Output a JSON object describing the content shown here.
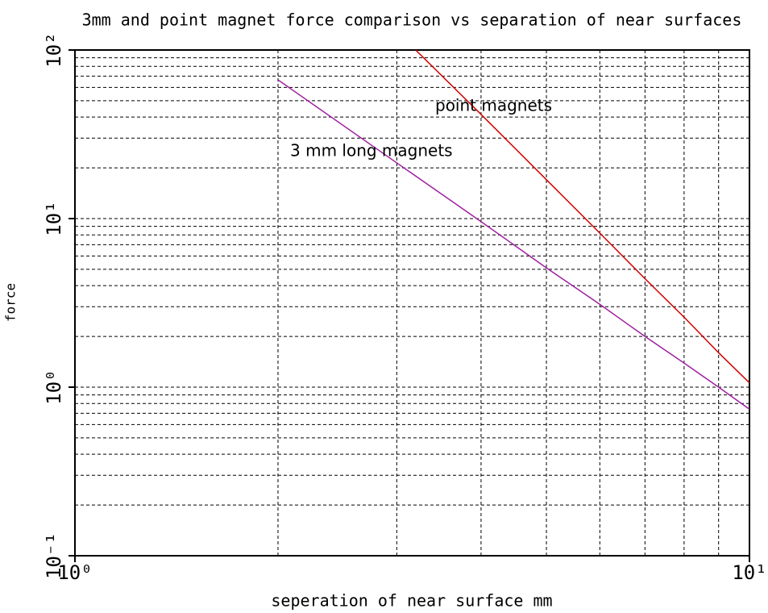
{
  "chart_data": {
    "type": "line",
    "title": "3mm and point magnet force comparison vs separation of near surfaces",
    "x_label": "seperation of near surface mm",
    "y_label": "force",
    "xscale": "log",
    "yscale": "log",
    "xlim": [
      1,
      10
    ],
    "ylim": [
      0.1,
      100
    ],
    "xticks": [
      {
        "value": 1,
        "label": "10⁰"
      },
      {
        "value": 10,
        "label": "10¹"
      }
    ],
    "yticks": [
      {
        "value": 0.1,
        "label": "10⁻¹"
      },
      {
        "value": 1,
        "label": "10⁰"
      },
      {
        "value": 10,
        "label": "10¹"
      },
      {
        "value": 100,
        "label": "10²"
      }
    ],
    "xminor": [
      2,
      3,
      4,
      5,
      6,
      7,
      8,
      9
    ],
    "yminor": [
      0.2,
      0.3,
      0.4,
      0.5,
      0.6,
      0.7,
      0.8,
      0.9,
      2,
      3,
      4,
      5,
      6,
      7,
      8,
      9,
      20,
      30,
      40,
      50,
      60,
      70,
      80,
      90
    ],
    "grid": true,
    "series": [
      {
        "name": "3 mm long magnets",
        "color": "#a020a0",
        "x": [
          2,
          3,
          4,
          5,
          6,
          7,
          8,
          9,
          10
        ],
        "values": [
          66.5,
          21.4,
          9.6,
          5.1,
          3.1,
          2.0,
          1.39,
          1.0,
          0.74
        ]
      },
      {
        "name": "point magnets",
        "color": "#d00000",
        "x": [
          3.2,
          4,
          5,
          6,
          7,
          8,
          9,
          10
        ],
        "values": [
          100,
          41.5,
          17,
          8.2,
          4.4,
          2.6,
          1.6,
          1.06
        ]
      }
    ]
  }
}
